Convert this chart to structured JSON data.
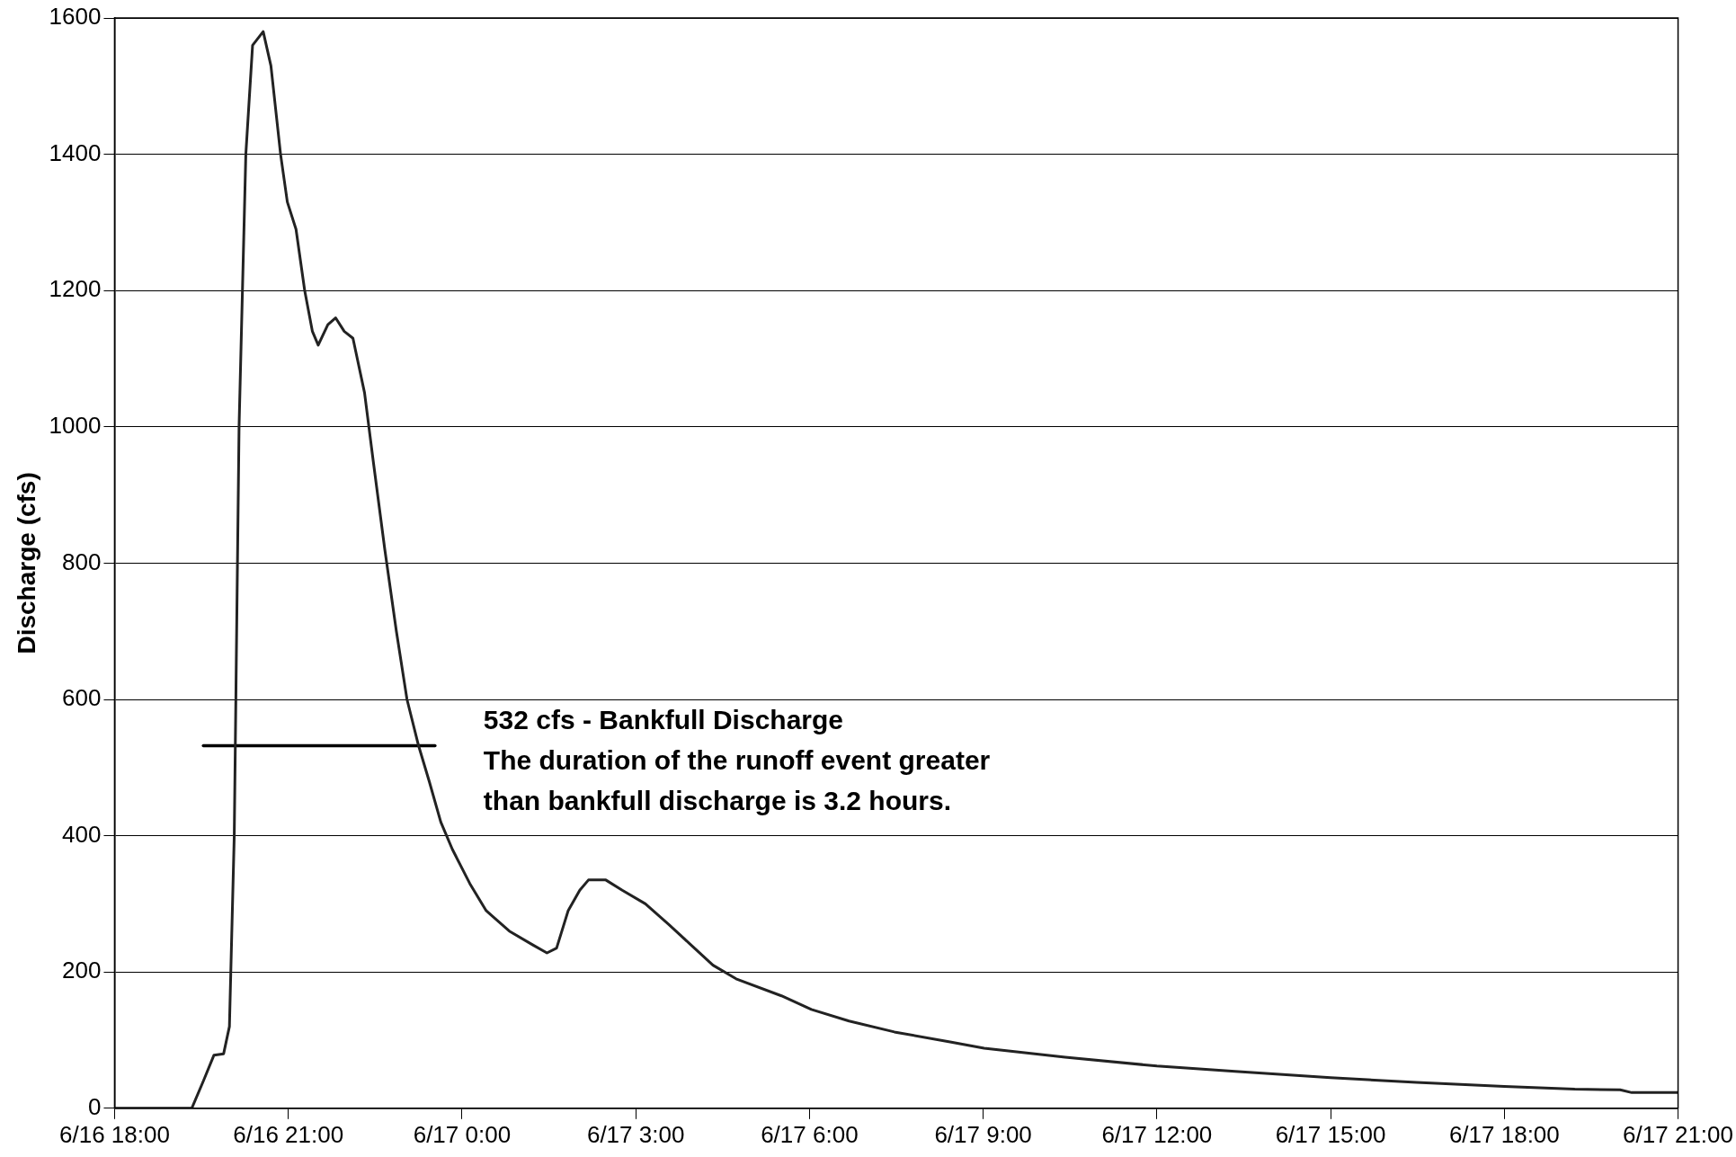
{
  "chart_data": {
    "type": "line",
    "ylabel": "Discharge (cfs)",
    "xlim": [
      "--06-16T18:00",
      "--06-17T21:00"
    ],
    "xticks": [
      {
        "value": "--06-16T18:00",
        "label": "6/16 18:00"
      },
      {
        "value": "--06-16T21:00",
        "label": "6/16 21:00"
      },
      {
        "value": "--06-17T00:00",
        "label": "6/17 0:00"
      },
      {
        "value": "--06-17T03:00",
        "label": "6/17 3:00"
      },
      {
        "value": "--06-17T06:00",
        "label": "6/17 6:00"
      },
      {
        "value": "--06-17T09:00",
        "label": "6/17 9:00"
      },
      {
        "value": "--06-17T12:00",
        "label": "6/17 12:00"
      },
      {
        "value": "--06-17T15:00",
        "label": "6/17 15:00"
      },
      {
        "value": "--06-17T18:00",
        "label": "6/17 18:00"
      },
      {
        "value": "--06-17T21:00",
        "label": "6/17 21:00"
      }
    ],
    "ylim": [
      0,
      1600
    ],
    "yticks": [
      0,
      200,
      400,
      600,
      800,
      1000,
      1200,
      1400,
      1600
    ],
    "grid": "y",
    "marker": "none",
    "line_style": "solid",
    "legend": false,
    "series": [
      {
        "color": "#222222",
        "x": [
          "--06-16T18:00",
          "--06-16T19:20",
          "--06-16T19:32",
          "--06-16T19:43",
          "--06-16T19:53",
          "--06-16T19:59",
          "--06-16T20:04",
          "--06-16T20:09",
          "--06-16T20:16",
          "--06-16T20:23",
          "--06-16T20:34",
          "--06-16T20:42",
          "--06-16T20:52",
          "--06-16T20:59",
          "--06-16T21:08",
          "--06-16T21:17",
          "--06-16T21:25",
          "--06-16T21:31",
          "--06-16T21:41",
          "--06-16T21:49",
          "--06-16T21:58",
          "--06-16T22:07",
          "--06-16T22:19",
          "--06-16T22:28",
          "--06-16T22:40",
          "--06-16T22:52",
          "--06-16T23:03",
          "--06-16T23:15",
          "--06-16T23:26",
          "--06-16T23:38",
          "--06-16T23:50",
          "--06-17T00:08",
          "--06-17T00:25",
          "--06-17T00:49",
          "--06-17T01:13",
          "--06-17T01:28",
          "--06-17T01:38",
          "--06-17T01:50",
          "--06-17T02:02",
          "--06-17T02:11",
          "--06-17T02:29",
          "--06-17T02:46",
          "--06-17T03:10",
          "--06-17T03:34",
          "--06-17T03:57",
          "--06-17T04:20",
          "--06-17T04:44",
          "--06-17T05:31",
          "--06-17T06:02",
          "--06-17T06:41",
          "--06-17T07:28",
          "--06-17T08:27",
          "--06-17T09:01",
          "--06-17T10:25",
          "--06-17T12:00",
          "--06-17T13:21",
          "--06-17T15:00",
          "--06-17T16:29",
          "--06-17T18:00",
          "--06-17T19:13",
          "--06-17T20:00",
          "--06-17T20:12",
          "--06-17T21:00"
        ],
        "values": [
          0,
          0,
          40,
          78,
          80,
          120,
          400,
          1000,
          1400,
          1560,
          1580,
          1530,
          1400,
          1330,
          1290,
          1200,
          1140,
          1120,
          1150,
          1160,
          1140,
          1130,
          1050,
          950,
          820,
          700,
          600,
          532,
          480,
          420,
          380,
          330,
          290,
          260,
          240,
          228,
          235,
          290,
          320,
          335,
          335,
          320,
          300,
          270,
          240,
          210,
          190,
          165,
          145,
          128,
          112,
          97,
          88,
          75,
          62,
          54,
          45,
          38,
          32,
          28,
          27,
          23,
          23
        ]
      },
      {
        "type": "line",
        "color": "#000000",
        "x": [
          "--06-16T19:32",
          "--06-16T23:32"
        ],
        "values": [
          532,
          532
        ]
      }
    ],
    "annotations": [
      "532 cfs - Bankfull Discharge",
      "The duration of the runoff event greater",
      "than bankfull discharge is 3.2 hours."
    ]
  }
}
